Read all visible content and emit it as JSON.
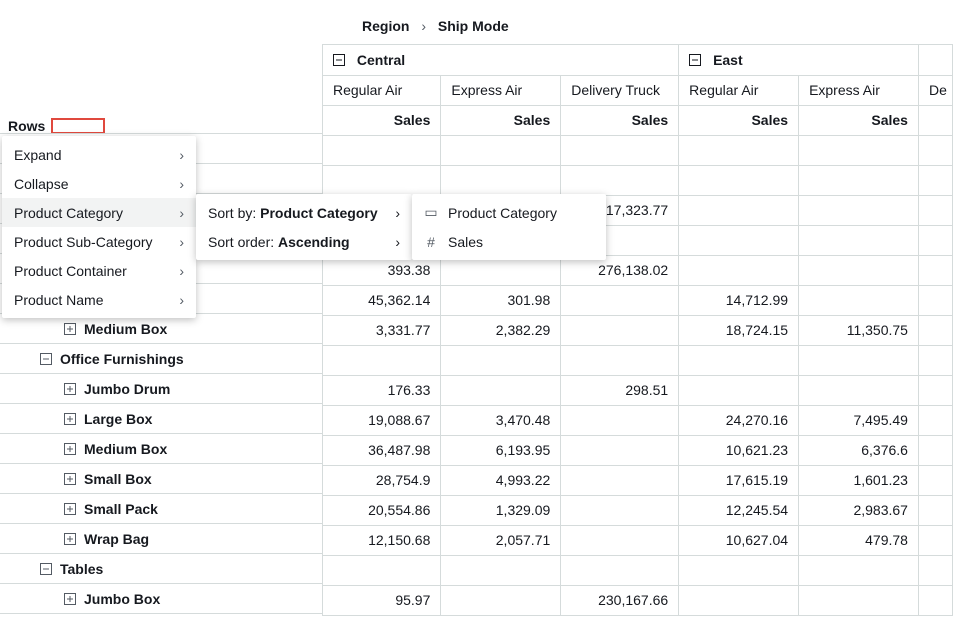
{
  "breadcrumb": {
    "a": "Region",
    "b": "Ship Mode"
  },
  "rows_label": "Rows",
  "regions": [
    {
      "name": "Central",
      "ship_modes": [
        "Regular Air",
        "Express Air",
        "Delivery Truck"
      ]
    },
    {
      "name": "East",
      "ship_modes": [
        "Regular Air",
        "Express Air"
      ]
    }
  ],
  "metric_label": "Sales",
  "partial_col_label": "De",
  "menu": {
    "items": [
      {
        "label": "Expand",
        "has_sub": true
      },
      {
        "label": "Collapse",
        "has_sub": true
      },
      {
        "label": "Product Category",
        "has_sub": true,
        "active": true
      },
      {
        "label": "Product Sub-Category",
        "has_sub": true
      },
      {
        "label": "Product Container",
        "has_sub": true
      },
      {
        "label": "Product Name",
        "has_sub": true
      }
    ]
  },
  "submenu1": {
    "sortby_prefix": "Sort by: ",
    "sortby_value": "Product Category",
    "sortorder_prefix": "Sort order: ",
    "sortorder_value": "Ascending"
  },
  "submenu2": {
    "opt1": "Product Category",
    "opt2": "Sales"
  },
  "table": {
    "rows": [
      {
        "label": "",
        "level": 0,
        "icon": "none",
        "blank": true,
        "cells": [
          "",
          "",
          "",
          "",
          "",
          ""
        ]
      },
      {
        "label": "",
        "level": 0,
        "icon": "none",
        "blank": true,
        "cells": [
          "",
          "",
          "",
          "",
          "",
          ""
        ]
      },
      {
        "label": "",
        "level": 0,
        "icon": "none",
        "blank": true,
        "cells": [
          "",
          "",
          "17,323.77",
          "",
          "",
          ""
        ]
      },
      {
        "label": "",
        "level": 0,
        "icon": "none",
        "blank": true,
        "cells": [
          "",
          "",
          "",
          "",
          "",
          ""
        ]
      },
      {
        "label": "",
        "level": 0,
        "icon": "none",
        "blank": true,
        "cells": [
          "393.38",
          "",
          "276,138.02",
          "",
          "",
          ""
        ]
      },
      {
        "label": "",
        "level": 0,
        "icon": "none",
        "blank": true,
        "cells": [
          "45,362.14",
          "301.98",
          "",
          "14,712.99",
          "",
          ""
        ]
      },
      {
        "label": "Medium Box",
        "level": 2,
        "icon": "plus",
        "cells": [
          "3,331.77",
          "2,382.29",
          "",
          "18,724.15",
          "11,350.75",
          ""
        ]
      },
      {
        "label": "Office Furnishings",
        "level": 1,
        "icon": "minus",
        "cells": [
          "",
          "",
          "",
          "",
          "",
          ""
        ]
      },
      {
        "label": "Jumbo Drum",
        "level": 2,
        "icon": "plus",
        "cells": [
          "176.33",
          "",
          "298.51",
          "",
          "",
          ""
        ]
      },
      {
        "label": "Large Box",
        "level": 2,
        "icon": "plus",
        "cells": [
          "19,088.67",
          "3,470.48",
          "",
          "24,270.16",
          "7,495.49",
          ""
        ]
      },
      {
        "label": "Medium Box",
        "level": 2,
        "icon": "plus",
        "cells": [
          "36,487.98",
          "6,193.95",
          "",
          "10,621.23",
          "6,376.6",
          ""
        ]
      },
      {
        "label": "Small Box",
        "level": 2,
        "icon": "plus",
        "cells": [
          "28,754.9",
          "4,993.22",
          "",
          "17,615.19",
          "1,601.23",
          ""
        ]
      },
      {
        "label": "Small Pack",
        "level": 2,
        "icon": "plus",
        "cells": [
          "20,554.86",
          "1,329.09",
          "",
          "12,245.54",
          "2,983.67",
          ""
        ]
      },
      {
        "label": "Wrap Bag",
        "level": 2,
        "icon": "plus",
        "cells": [
          "12,150.68",
          "2,057.71",
          "",
          "10,627.04",
          "479.78",
          ""
        ]
      },
      {
        "label": "Tables",
        "level": 1,
        "icon": "minus",
        "cells": [
          "",
          "",
          "",
          "",
          "",
          ""
        ]
      },
      {
        "label": "Jumbo Box",
        "level": 2,
        "icon": "plus",
        "cells": [
          "95.97",
          "",
          "230,167.66",
          "",
          "",
          ""
        ]
      }
    ]
  },
  "colors": {
    "border": "#d5dbdb",
    "text": "#16191f",
    "highlight": "#e0493e",
    "menu_hover": "#f2f3f3"
  }
}
